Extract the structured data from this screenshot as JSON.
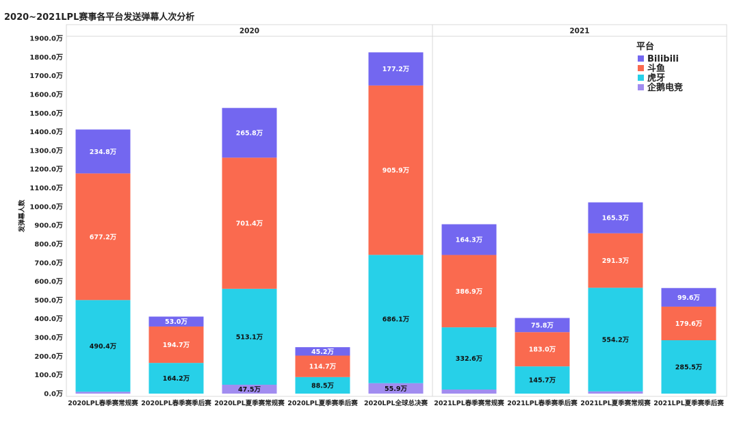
{
  "title": "2020~2021LPL赛事各平台发送弹幕人次分析",
  "colors": {
    "Bilibili": "#7367f0",
    "斗鱼": "#fa6a4f",
    "虎牙": "#27d0e8",
    "企鹅电竞": "#a18cf0"
  },
  "chart_data": {
    "type": "bar",
    "stacked": true,
    "title": "2020~2021LPL赛事各平台发送弹幕人次分析",
    "ylabel": "发弹幕人数",
    "ylim": [
      0,
      1900
    ],
    "yticks": [
      "0.0万",
      "100.0万",
      "200.0万",
      "300.0万",
      "400.0万",
      "500.0万",
      "600.0万",
      "700.0万",
      "800.0万",
      "900.0万",
      "1000.0万",
      "1100.0万",
      "1200.0万",
      "1300.0万",
      "1400.0万",
      "1500.0万",
      "1600.0万",
      "1700.0万",
      "1800.0万",
      "1900.0万"
    ],
    "grid": false,
    "legend": {
      "title": "平台",
      "placement": "top-right",
      "entries": [
        "Bilibili",
        "斗鱼",
        "虎牙",
        "企鹅电竞"
      ]
    },
    "panels": [
      "2020",
      "2021"
    ],
    "categories": [
      "2020LPL春季赛常规赛",
      "2020LPL春季赛季后赛",
      "2020LPL夏季赛常规赛",
      "2020LPL夏季赛季后赛",
      "2020LPL全球总决赛",
      "2021LPL春季赛常规赛",
      "2021LPL春季赛季后赛",
      "2021LPL夏季赛常规赛",
      "2021LPL夏季赛季后赛"
    ],
    "category_panels": [
      "2020",
      "2020",
      "2020",
      "2020",
      "2020",
      "2021",
      "2021",
      "2021",
      "2021"
    ],
    "series": [
      {
        "name": "企鹅电竞",
        "values": [
          10,
          0,
          47.5,
          0,
          55.9,
          22,
          0,
          12,
          0
        ],
        "labels": [
          "",
          "",
          "47.5万",
          "",
          "55.9万",
          "",
          "",
          "",
          ""
        ]
      },
      {
        "name": "虎牙",
        "values": [
          490.4,
          164.2,
          513.1,
          88.5,
          686.1,
          332.6,
          145.7,
          554.2,
          285.5
        ],
        "labels": [
          "490.4万",
          "164.2万",
          "513.1万",
          "88.5万",
          "686.1万",
          "332.6万",
          "145.7万",
          "554.2万",
          "285.5万"
        ]
      },
      {
        "name": "斗鱼",
        "values": [
          677.2,
          194.7,
          701.4,
          114.7,
          905.9,
          386.9,
          183.0,
          291.3,
          179.6
        ],
        "labels": [
          "677.2万",
          "194.7万",
          "701.4万",
          "114.7万",
          "905.9万",
          "386.9万",
          "183.0万",
          "291.3万",
          "179.6万"
        ]
      },
      {
        "name": "Bilibili",
        "values": [
          234.8,
          53.0,
          265.8,
          45.2,
          177.2,
          164.3,
          75.8,
          165.3,
          99.6
        ],
        "labels": [
          "234.8万",
          "53.0万",
          "265.8万",
          "45.2万",
          "177.2万",
          "164.3万",
          "75.8万",
          "165.3万",
          "99.6万"
        ]
      }
    ]
  }
}
